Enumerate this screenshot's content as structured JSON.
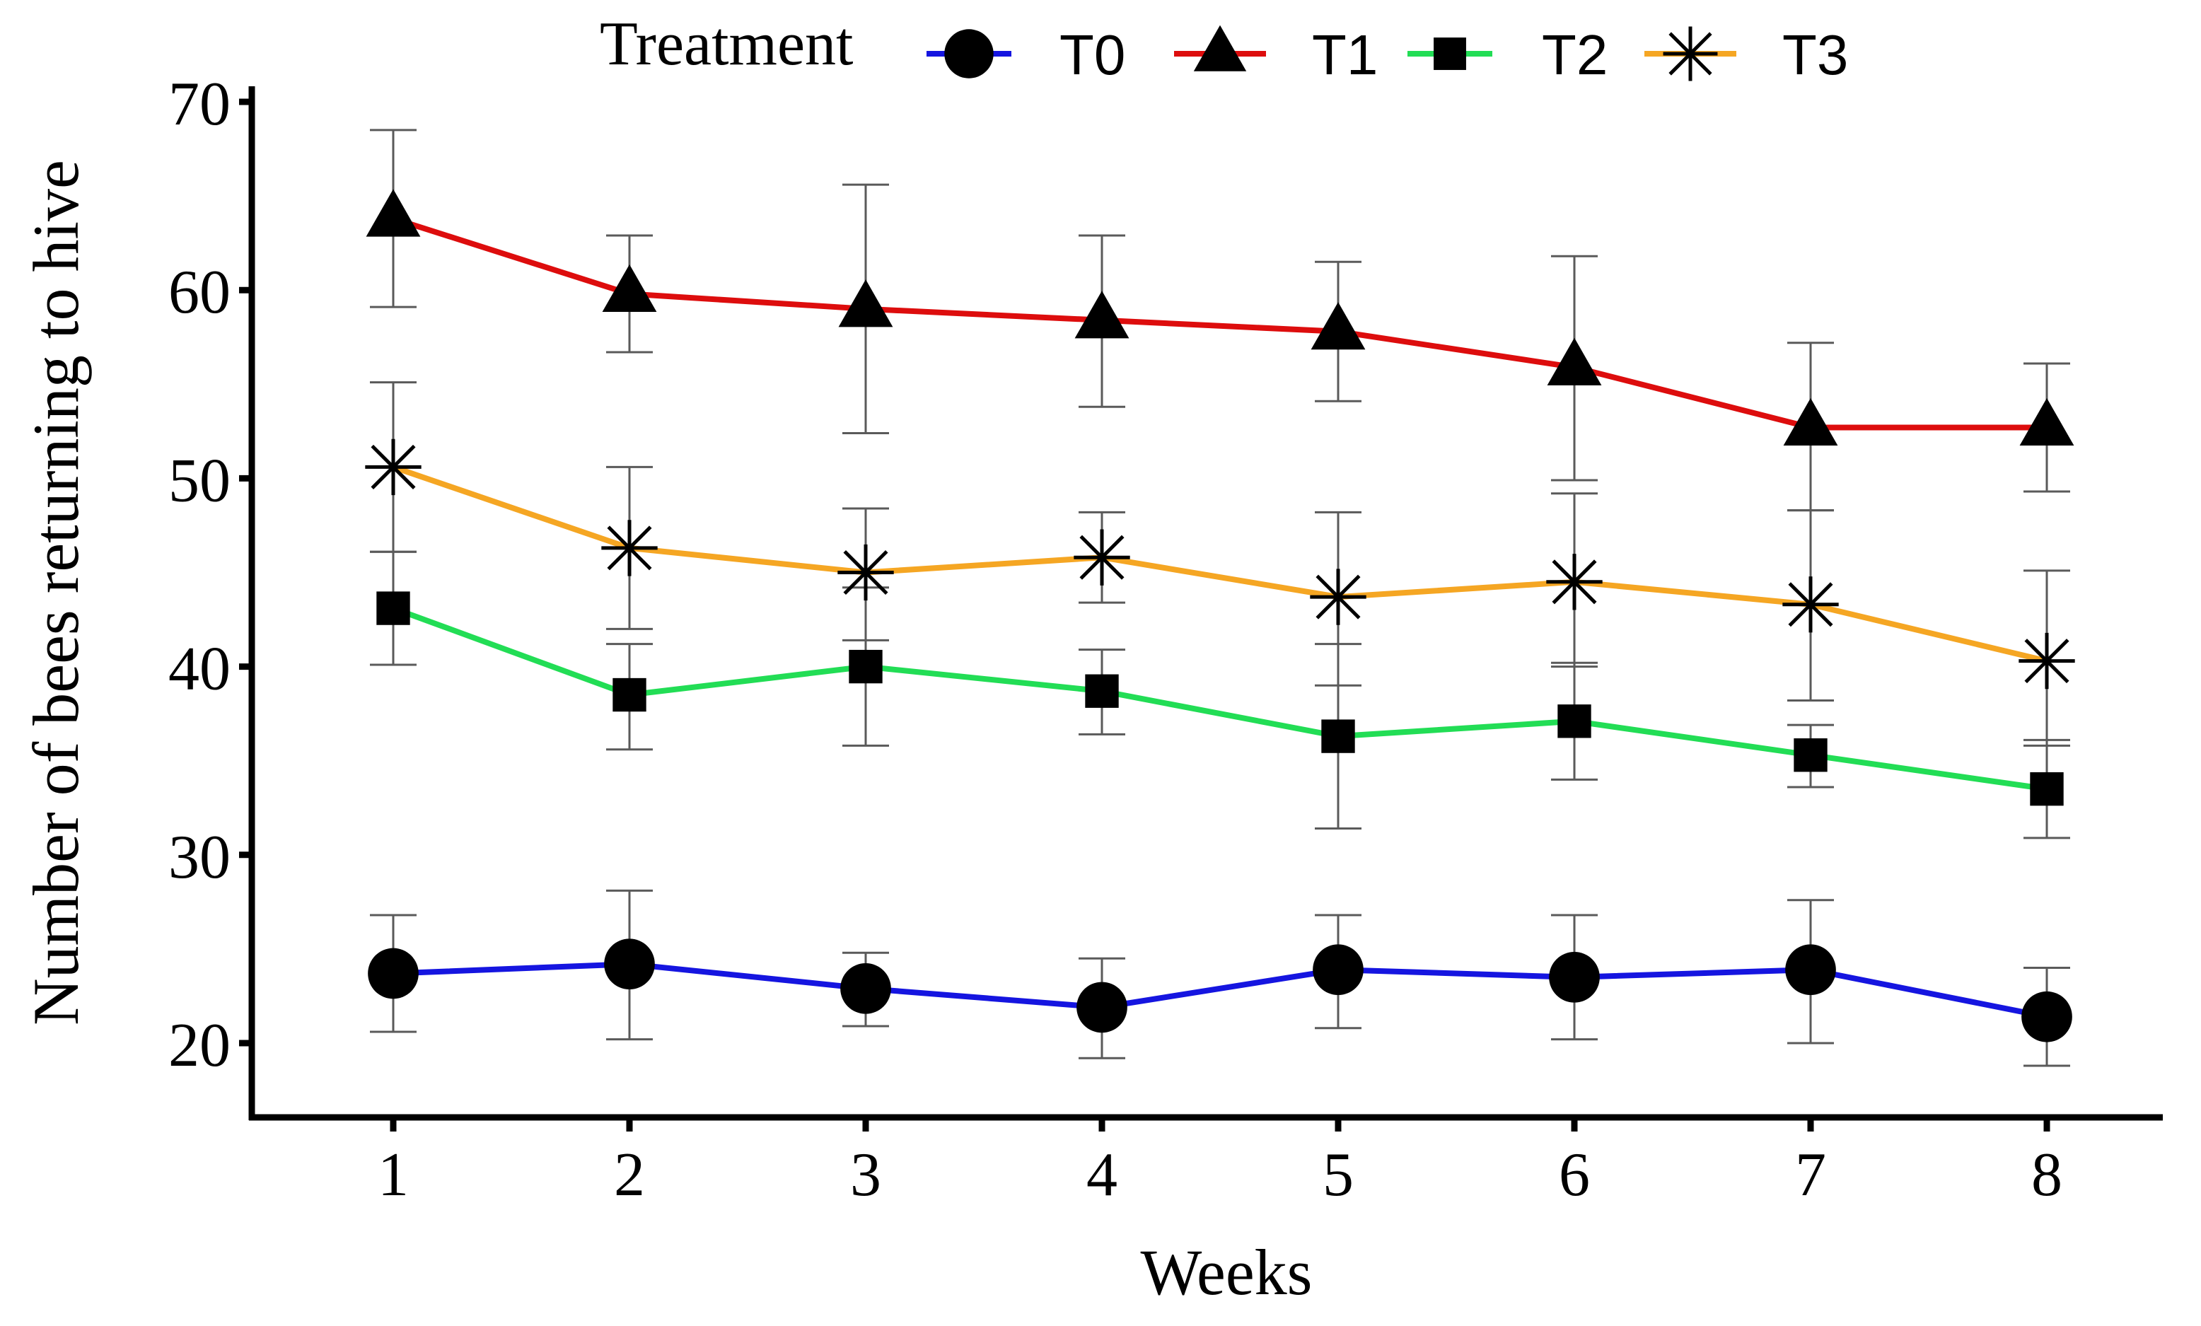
{
  "chart_data": {
    "type": "line",
    "title": "",
    "xlabel": "Weeks",
    "ylabel": "Number of bees returning to hive",
    "legend_title": "Treatment",
    "legend_position": "top",
    "grid": false,
    "categories": [
      1,
      2,
      3,
      4,
      5,
      6,
      7,
      8
    ],
    "x_tick_labels": [
      "1",
      "2",
      "3",
      "4",
      "5",
      "6",
      "7",
      "8"
    ],
    "yticks": [
      20,
      30,
      40,
      50,
      60,
      70
    ],
    "y_tick_labels": [
      "20",
      "30",
      "40",
      "50",
      "60",
      "70"
    ],
    "ylim": [
      16.5,
      70.5
    ],
    "xlim": [
      0.4,
      8.5
    ],
    "series": [
      {
        "name": "T0",
        "color": "#1515E0",
        "marker": "circle",
        "values": [
          23.7,
          24.2,
          22.9,
          21.9,
          23.9,
          23.5,
          23.9,
          21.4
        ],
        "err_upper": [
          26.8,
          28.1,
          24.8,
          24.5,
          26.8,
          26.8,
          27.6,
          24.0
        ],
        "err_lower": [
          20.6,
          20.2,
          20.9,
          19.2,
          20.8,
          20.2,
          20.0,
          18.8
        ]
      },
      {
        "name": "T1",
        "color": "#DD0D0D",
        "marker": "triangle",
        "values": [
          63.8,
          59.8,
          59.0,
          58.4,
          57.8,
          55.9,
          52.7,
          52.7
        ],
        "err_upper": [
          68.5,
          62.9,
          65.6,
          62.9,
          61.5,
          61.8,
          57.2,
          56.1
        ],
        "err_lower": [
          59.1,
          56.7,
          52.4,
          53.8,
          54.1,
          49.9,
          48.3,
          49.3
        ]
      },
      {
        "name": "T2",
        "color": "#22DD55",
        "marker": "square",
        "values": [
          43.1,
          38.5,
          40.0,
          38.7,
          36.3,
          37.1,
          35.3,
          33.5
        ],
        "err_upper": [
          46.1,
          41.2,
          44.2,
          40.9,
          41.2,
          40.2,
          36.9,
          36.1
        ],
        "err_lower": [
          40.1,
          35.6,
          35.8,
          36.4,
          31.4,
          34.0,
          33.6,
          30.9
        ]
      },
      {
        "name": "T3",
        "color": "#F5A623",
        "marker": "asterisk",
        "values": [
          50.6,
          46.3,
          45.0,
          45.8,
          43.7,
          44.5,
          43.3,
          40.3
        ],
        "err_upper": [
          55.1,
          50.6,
          48.4,
          48.2,
          48.2,
          49.2,
          48.3,
          45.1
        ],
        "err_lower": [
          46.1,
          42.0,
          41.4,
          43.4,
          39.0,
          40.0,
          38.2,
          35.8
        ]
      }
    ]
  }
}
